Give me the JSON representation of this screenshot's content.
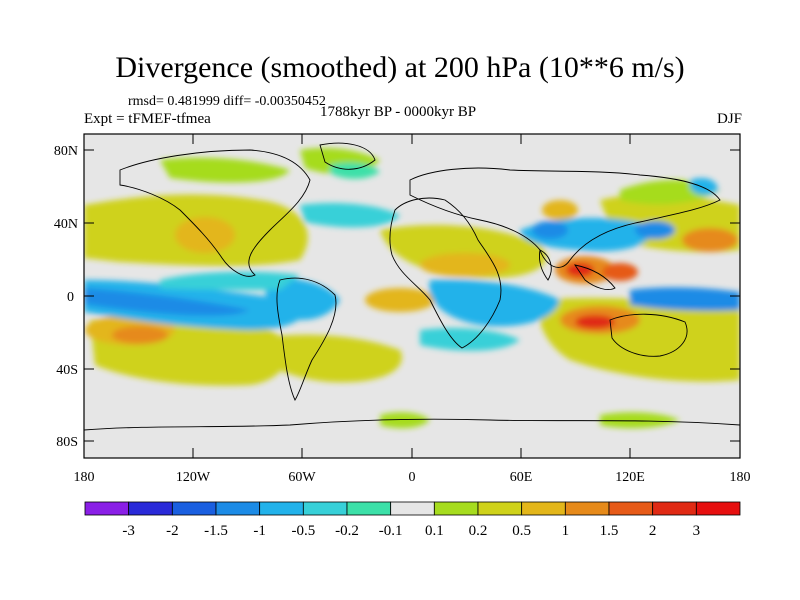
{
  "title": "Divergence (smoothed) at 200 hPa (10**6 m/s)",
  "stats": "rmsd= 0.481999 diff= -0.00350452",
  "experiment": "Expt = tFMEF-tfmea",
  "period": "1788kyr BP - 0000kyr BP",
  "season": "DJF",
  "map": {
    "lat_ticks": [
      "80N",
      "40N",
      "0",
      "40S",
      "80S"
    ],
    "lon_ticks": [
      "180",
      "120W",
      "60W",
      "0",
      "60E",
      "120E",
      "180"
    ]
  },
  "colorbar": {
    "labels": [
      "-3",
      "-2",
      "-1.5",
      "-1",
      "-0.5",
      "-0.2",
      "-0.1",
      "0.1",
      "0.2",
      "0.5",
      "1",
      "1.5",
      "2",
      "3"
    ],
    "colors": [
      "#8a1fe6",
      "#2a2ad8",
      "#1a5fe0",
      "#1c8be6",
      "#22b2ea",
      "#37d0d8",
      "#3ce0a8",
      "#e6e6e6",
      "#a6dc1e",
      "#cfd21a",
      "#e3b61a",
      "#e68a1a",
      "#e65a18",
      "#e02a14",
      "#e60f0f"
    ]
  }
}
